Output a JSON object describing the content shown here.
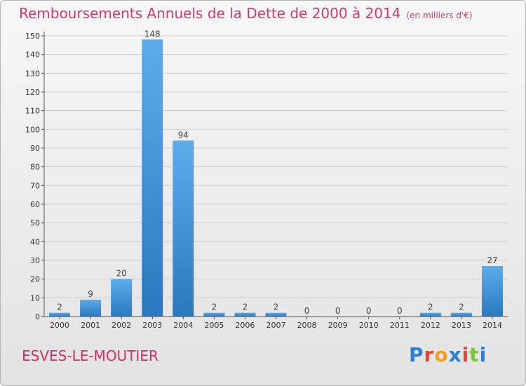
{
  "title": "Remboursements Annuels de la Dette de 2000 à 2014",
  "unit_note": "(en milliers d'€)",
  "commune": "ESVES-LE-MOUTIER",
  "logo": {
    "text": "Proxiti",
    "letter_colors": [
      "#2a7fd4",
      "#e8452c",
      "#f0a01e",
      "#2a7fd4",
      "#e8452c",
      "#7cc242",
      "#2a7fd4"
    ]
  },
  "colors": {
    "bar_top": "#5dacea",
    "bar_bottom": "#2a78bf",
    "grid": "#cfcfcf",
    "axis": "#555555"
  },
  "chart_data": {
    "type": "bar",
    "categories": [
      "2000",
      "2001",
      "2002",
      "2003",
      "2004",
      "2005",
      "2006",
      "2007",
      "2008",
      "2009",
      "2010",
      "2011",
      "2012",
      "2013",
      "2014"
    ],
    "values": [
      2,
      9,
      20,
      148,
      94,
      2,
      2,
      2,
      0,
      0,
      0,
      0,
      2,
      2,
      27
    ],
    "value_labels": [
      "2",
      "9",
      "20",
      "148",
      "94",
      "2",
      "2",
      "2",
      "0",
      "0",
      "0",
      "0",
      "2",
      "2",
      "27"
    ],
    "yticks": [
      "0",
      "10",
      "20",
      "30",
      "40",
      "50",
      "60",
      "70",
      "80",
      "90",
      "100",
      "110",
      "120",
      "130",
      "140",
      "150"
    ],
    "ylim": [
      0,
      150
    ],
    "grid": true
  }
}
